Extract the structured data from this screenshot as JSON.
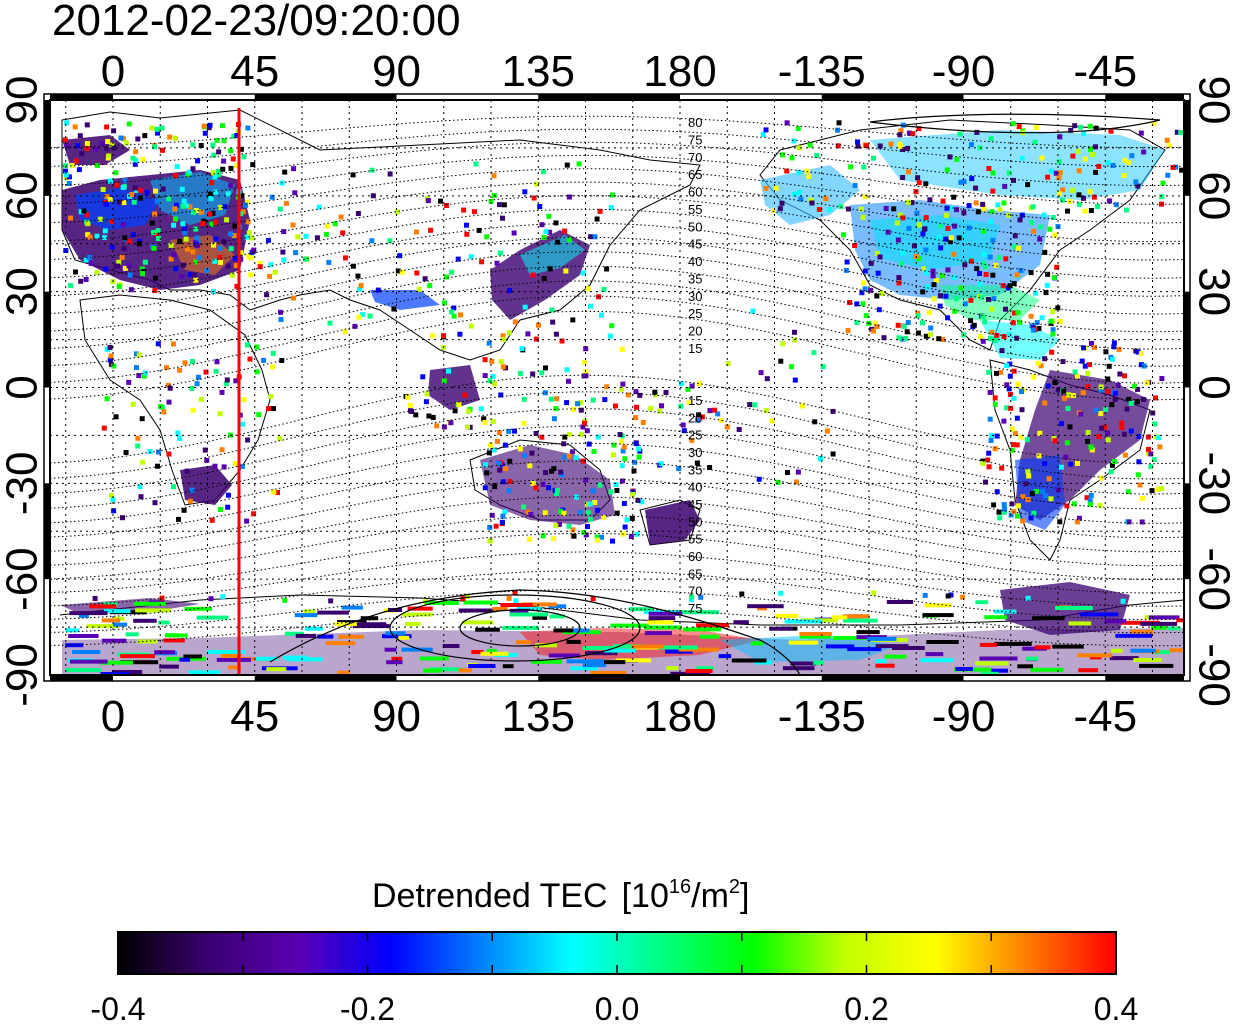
{
  "timestamp": "2012-02-23/09:20:00",
  "map": {
    "lon_ticks_top": [
      "0",
      "45",
      "90",
      "135",
      "180",
      "-135",
      "-90",
      "-45"
    ],
    "lon_ticks_bottom": [
      "0",
      "45",
      "90",
      "135",
      "180",
      "-135",
      "-90",
      "-45"
    ],
    "lat_ticks_left": [
      "90",
      "60",
      "30",
      "0",
      "-30",
      "-60",
      "-90"
    ],
    "lat_ticks_right": [
      "90",
      "60",
      "30",
      "0",
      "-30",
      "-60",
      "-90"
    ],
    "lon_range": [
      -20,
      340
    ],
    "lat_range": [
      -90,
      90
    ],
    "grid": true,
    "marker_line_longitude": 40,
    "marker_line_color": "#ff0000",
    "contour_labels_north": [
      "80",
      "75",
      "70",
      "65",
      "60",
      "55",
      "50",
      "45",
      "40",
      "35",
      "30",
      "25",
      "20",
      "15"
    ],
    "contour_labels_south": [
      "15",
      "20",
      "25",
      "30",
      "35",
      "40",
      "45",
      "50",
      "55",
      "60",
      "65",
      "70",
      "75"
    ]
  },
  "colorbar": {
    "title_main": "Detrended TEC",
    "title_unit_open": "[10",
    "title_unit_exp": "16",
    "title_unit_mid": "/m",
    "title_unit_exp2": "2",
    "title_unit_close": "]",
    "tick_labels": [
      "-0.4",
      "-0.2",
      "0.0",
      "0.2",
      "0.4"
    ],
    "min": -0.4,
    "max": 0.4,
    "colors": [
      "#000000",
      "#3a0070",
      "#5a00b4",
      "#0000ff",
      "#0080ff",
      "#00ffff",
      "#00ff80",
      "#00ff00",
      "#c0ff00",
      "#ffff00",
      "#ff8000",
      "#ff0000"
    ]
  },
  "chart_data": {
    "type": "heatmap",
    "title": "2012-02-23/09:20:00",
    "xlabel": "",
    "ylabel": "",
    "xlim": [
      -20,
      340
    ],
    "ylim": [
      -90,
      90
    ],
    "x_ticks": [
      0,
      45,
      90,
      135,
      180,
      225,
      270,
      315
    ],
    "y_ticks": [
      90,
      60,
      30,
      0,
      -30,
      -60,
      -90
    ],
    "colorbar_label": "Detrended TEC [10^16/m^2]",
    "colorbar_range": [
      -0.4,
      0.4
    ],
    "reference_line_longitude": 40
  }
}
